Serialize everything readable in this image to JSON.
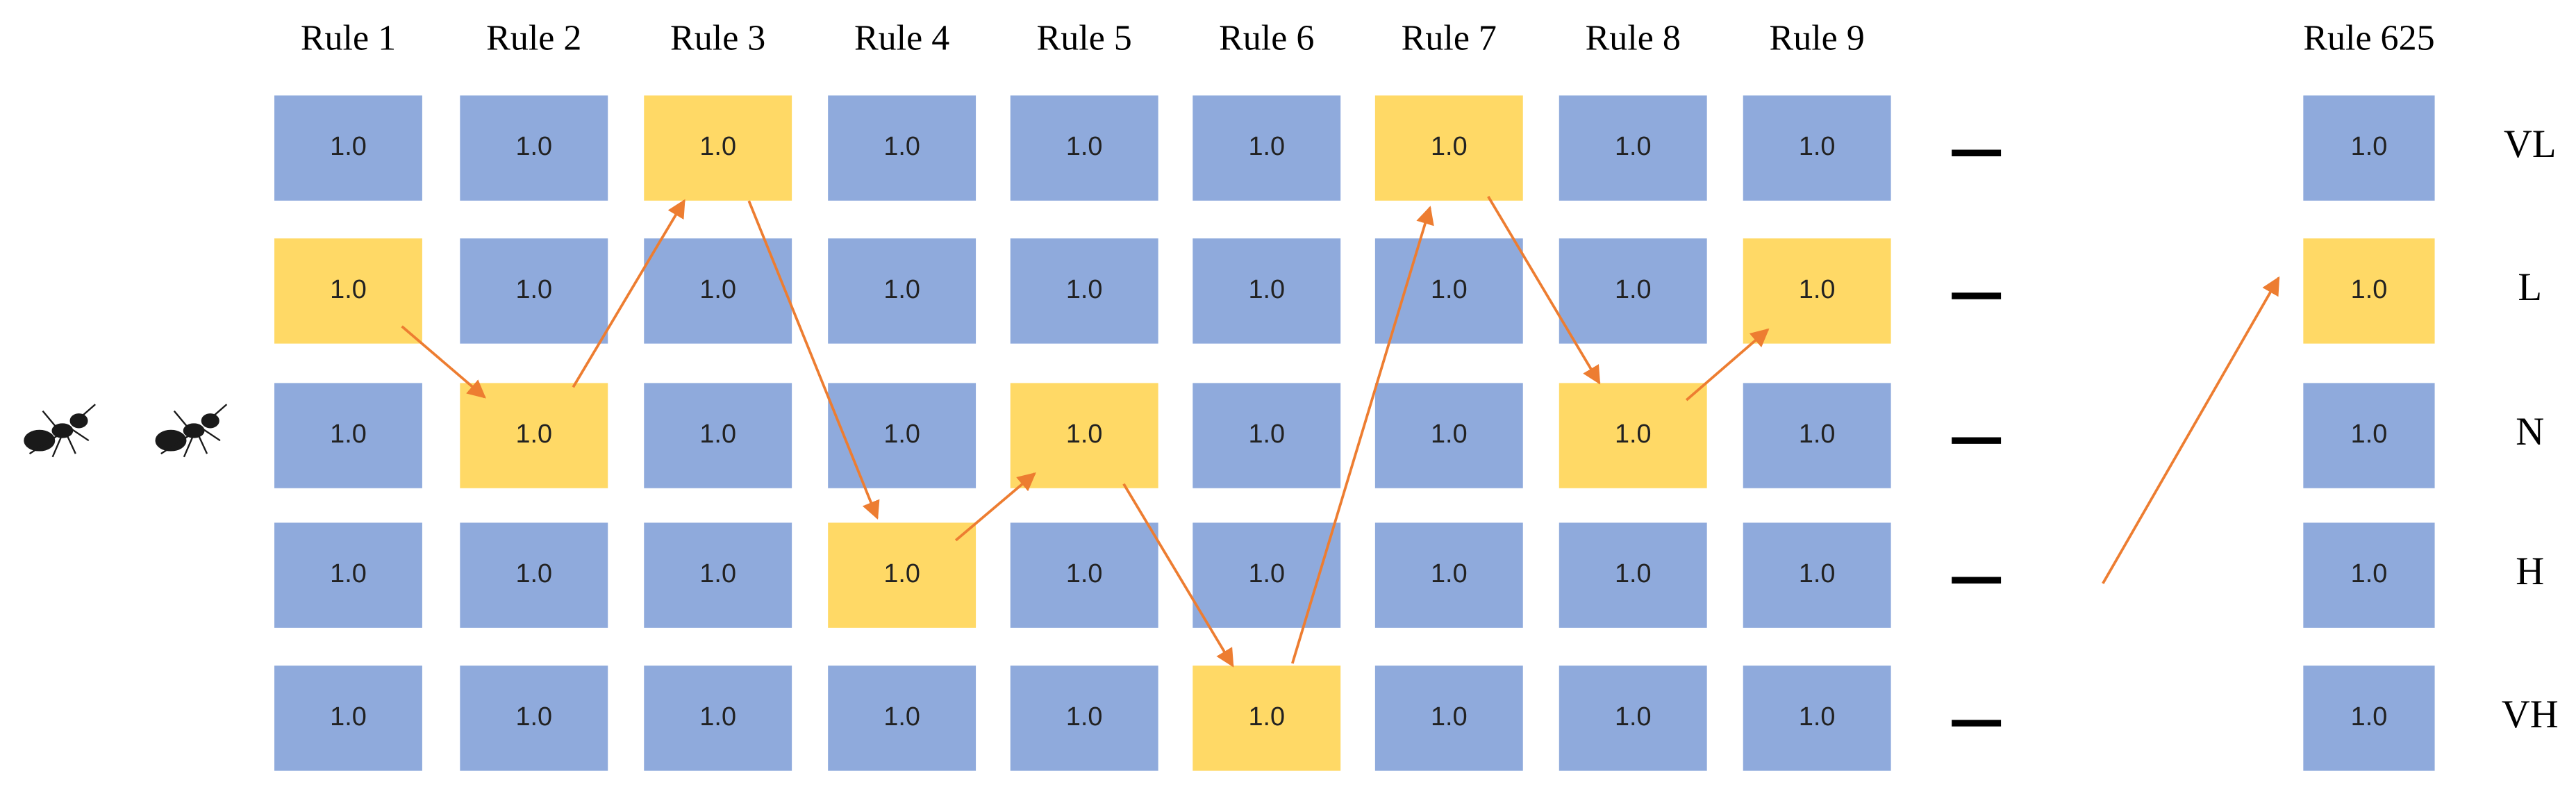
{
  "columns": [
    {
      "header": "Rule 1",
      "cells": [
        {
          "text": "1.0",
          "highlighted": false
        },
        {
          "text": "1.0",
          "highlighted": true
        },
        {
          "text": "1.0",
          "highlighted": false
        },
        {
          "text": "1.0",
          "highlighted": false
        },
        {
          "text": "1.0",
          "highlighted": false
        }
      ]
    },
    {
      "header": "Rule 2",
      "cells": [
        {
          "text": "1.0",
          "highlighted": false
        },
        {
          "text": "1.0",
          "highlighted": false
        },
        {
          "text": "1.0",
          "highlighted": true
        },
        {
          "text": "1.0",
          "highlighted": false
        },
        {
          "text": "1.0",
          "highlighted": false
        }
      ]
    },
    {
      "header": "Rule 3",
      "cells": [
        {
          "text": "1.0",
          "highlighted": true
        },
        {
          "text": "1.0",
          "highlighted": false
        },
        {
          "text": "1.0",
          "highlighted": false
        },
        {
          "text": "1.0",
          "highlighted": false
        },
        {
          "text": "1.0",
          "highlighted": false
        }
      ]
    },
    {
      "header": "Rule 4",
      "cells": [
        {
          "text": "1.0",
          "highlighted": false
        },
        {
          "text": "1.0",
          "highlighted": false
        },
        {
          "text": "1.0",
          "highlighted": false
        },
        {
          "text": "1.0",
          "highlighted": true
        },
        {
          "text": "1.0",
          "highlighted": false
        }
      ]
    },
    {
      "header": "Rule 5",
      "cells": [
        {
          "text": "1.0",
          "highlighted": false
        },
        {
          "text": "1.0",
          "highlighted": false
        },
        {
          "text": "1.0",
          "highlighted": true
        },
        {
          "text": "1.0",
          "highlighted": false
        },
        {
          "text": "1.0",
          "highlighted": false
        }
      ]
    },
    {
      "header": "Rule 6",
      "cells": [
        {
          "text": "1.0",
          "highlighted": false
        },
        {
          "text": "1.0",
          "highlighted": false
        },
        {
          "text": "1.0",
          "highlighted": false
        },
        {
          "text": "1.0",
          "highlighted": false
        },
        {
          "text": "1.0",
          "highlighted": true
        }
      ]
    },
    {
      "header": "Rule 7",
      "cells": [
        {
          "text": "1.0",
          "highlighted": true
        },
        {
          "text": "1.0",
          "highlighted": false
        },
        {
          "text": "1.0",
          "highlighted": false
        },
        {
          "text": "1.0",
          "highlighted": false
        },
        {
          "text": "1.0",
          "highlighted": false
        }
      ]
    },
    {
      "header": "Rule 8",
      "cells": [
        {
          "text": "1.0",
          "highlighted": false
        },
        {
          "text": "1.0",
          "highlighted": false
        },
        {
          "text": "1.0",
          "highlighted": true
        },
        {
          "text": "1.0",
          "highlighted": false
        },
        {
          "text": "1.0",
          "highlighted": false
        }
      ]
    },
    {
      "header": "Rule 9",
      "cells": [
        {
          "text": "1.0",
          "highlighted": false
        },
        {
          "text": "1.0",
          "highlighted": true
        },
        {
          "text": "1.0",
          "highlighted": false
        },
        {
          "text": "1.0",
          "highlighted": false
        },
        {
          "text": "1.0",
          "highlighted": false
        }
      ]
    },
    {
      "header": "Rule 625",
      "cells": [
        {
          "text": "1.0",
          "highlighted": false
        },
        {
          "text": "1.0",
          "highlighted": true
        },
        {
          "text": "1.0",
          "highlighted": false
        },
        {
          "text": "1.0",
          "highlighted": false
        },
        {
          "text": "1.0",
          "highlighted": false
        }
      ]
    }
  ],
  "row_labels": [
    "VL",
    "L",
    "N",
    "H",
    "VH"
  ]
}
